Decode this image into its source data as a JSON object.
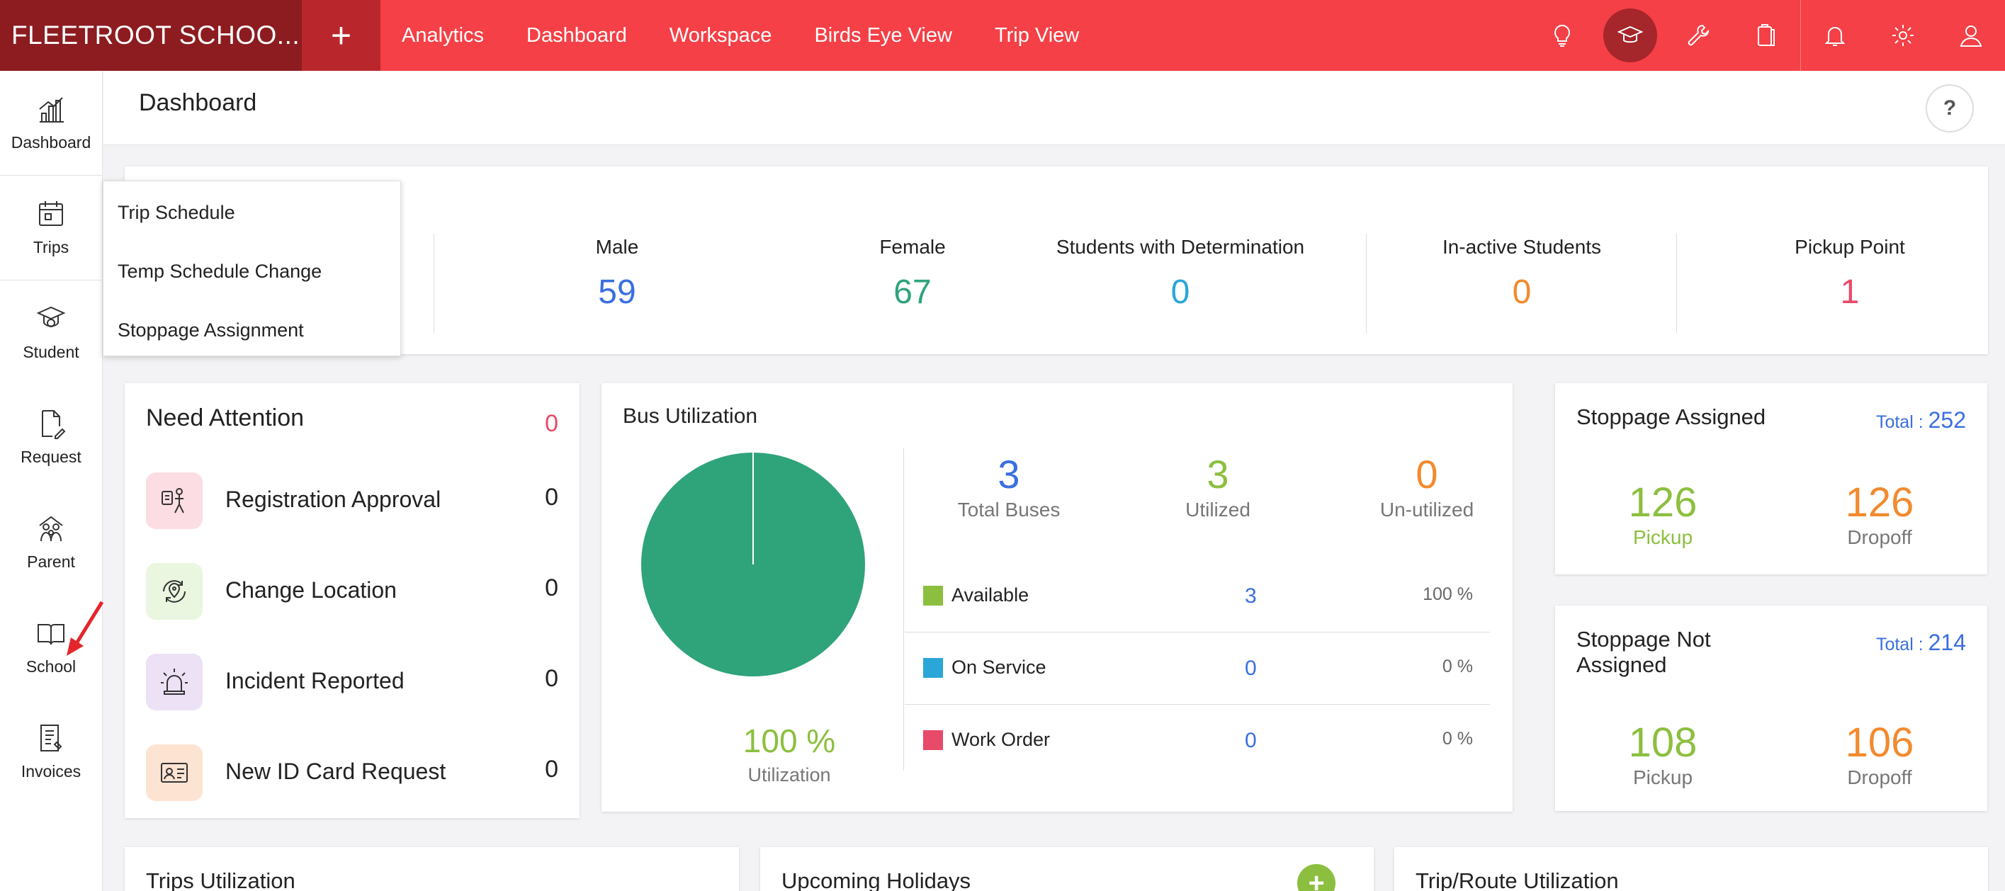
{
  "app": {
    "brand": "FLEETROOT SCHOO...",
    "plus_label": "+"
  },
  "topnav": {
    "items": [
      "Analytics",
      "Dashboard",
      "Workspace",
      "Birds Eye View",
      "Trip View"
    ]
  },
  "top_icons": [
    "bulb-icon",
    "graduation-cap-icon",
    "wrench-icon",
    "clipboard-icon",
    "bell-icon",
    "gear-icon",
    "user-icon"
  ],
  "sidebar": {
    "items": [
      {
        "label": "Dashboard",
        "icon": "bar-chart-icon"
      },
      {
        "label": "Trips",
        "icon": "calendar-icon"
      },
      {
        "label": "Student",
        "icon": "student-cap-icon"
      },
      {
        "label": "Request",
        "icon": "document-edit-icon"
      },
      {
        "label": "Parent",
        "icon": "family-icon"
      },
      {
        "label": "School",
        "icon": "open-book-icon"
      },
      {
        "label": "Invoices",
        "icon": "invoice-icon"
      }
    ]
  },
  "trips_menu": {
    "items": [
      "Trip Schedule",
      "Temp Schedule Change",
      "Stoppage Assignment"
    ]
  },
  "header": {
    "title": "Dashboard",
    "help": "?"
  },
  "student_stats": [
    {
      "label": "Male",
      "value": "59",
      "color": "#3a6fe0"
    },
    {
      "label": "Female",
      "value": "67",
      "color": "#2fa37a"
    },
    {
      "label": "Students with Determination",
      "value": "0",
      "color": "#2ba6d8"
    },
    {
      "label": "In-active Students",
      "value": "0",
      "color": "#f28a2e"
    },
    {
      "label": "Pickup Point",
      "value": "1",
      "color": "#e84a6a"
    }
  ],
  "need_attention": {
    "title": "Need Attention",
    "count": "0",
    "items": [
      {
        "label": "Registration Approval",
        "value": "0",
        "icon": "registration-icon",
        "bg": "#fbdde3"
      },
      {
        "label": "Change Location",
        "value": "0",
        "icon": "location-change-icon",
        "bg": "#eaf6df"
      },
      {
        "label": "Incident Reported",
        "value": "0",
        "icon": "alarm-icon",
        "bg": "#ede1f6"
      },
      {
        "label": "New ID Card Request",
        "value": "0",
        "icon": "id-card-icon",
        "bg": "#fde3d2"
      }
    ]
  },
  "bus_utilization": {
    "title": "Bus Utilization",
    "utilization_pct": "100 %",
    "utilization_label": "Utilization",
    "stats": [
      {
        "value": "3",
        "label": "Total Buses",
        "color": "#3a6fe0"
      },
      {
        "value": "3",
        "label": "Utilized",
        "color": "#8cbf3f"
      },
      {
        "value": "0",
        "label": "Un-utilized",
        "color": "#f28a2e"
      }
    ],
    "rows": [
      {
        "name": "Available",
        "count": "3",
        "pct": "100 %",
        "color": "#8cbf3f"
      },
      {
        "name": "On Service",
        "count": "0",
        "pct": "0 %",
        "color": "#2ba6d8"
      },
      {
        "name": "Work Order",
        "count": "0",
        "pct": "0 %",
        "color": "#e84a6a"
      }
    ],
    "pie_color": "#2fa37a"
  },
  "stoppage_assigned": {
    "title": "Stoppage Assigned",
    "total_label": "Total : ",
    "total": "252",
    "pickup": "126",
    "pickup_label": "Pickup",
    "dropoff": "126",
    "dropoff_label": "Dropoff"
  },
  "stoppage_not_assigned": {
    "title_line1": "Stoppage Not",
    "title_line2": "Assigned",
    "total_label": "Total : ",
    "total": "214",
    "pickup": "108",
    "pickup_label": "Pickup",
    "dropoff": "106",
    "dropoff_label": "Dropoff"
  },
  "bottom_cards": {
    "trips_utilization": "Trips Utilization",
    "upcoming_holidays": "Upcoming Holidays",
    "add_label": "+",
    "trip_route_utilization": "Trip/Route Utilization"
  }
}
